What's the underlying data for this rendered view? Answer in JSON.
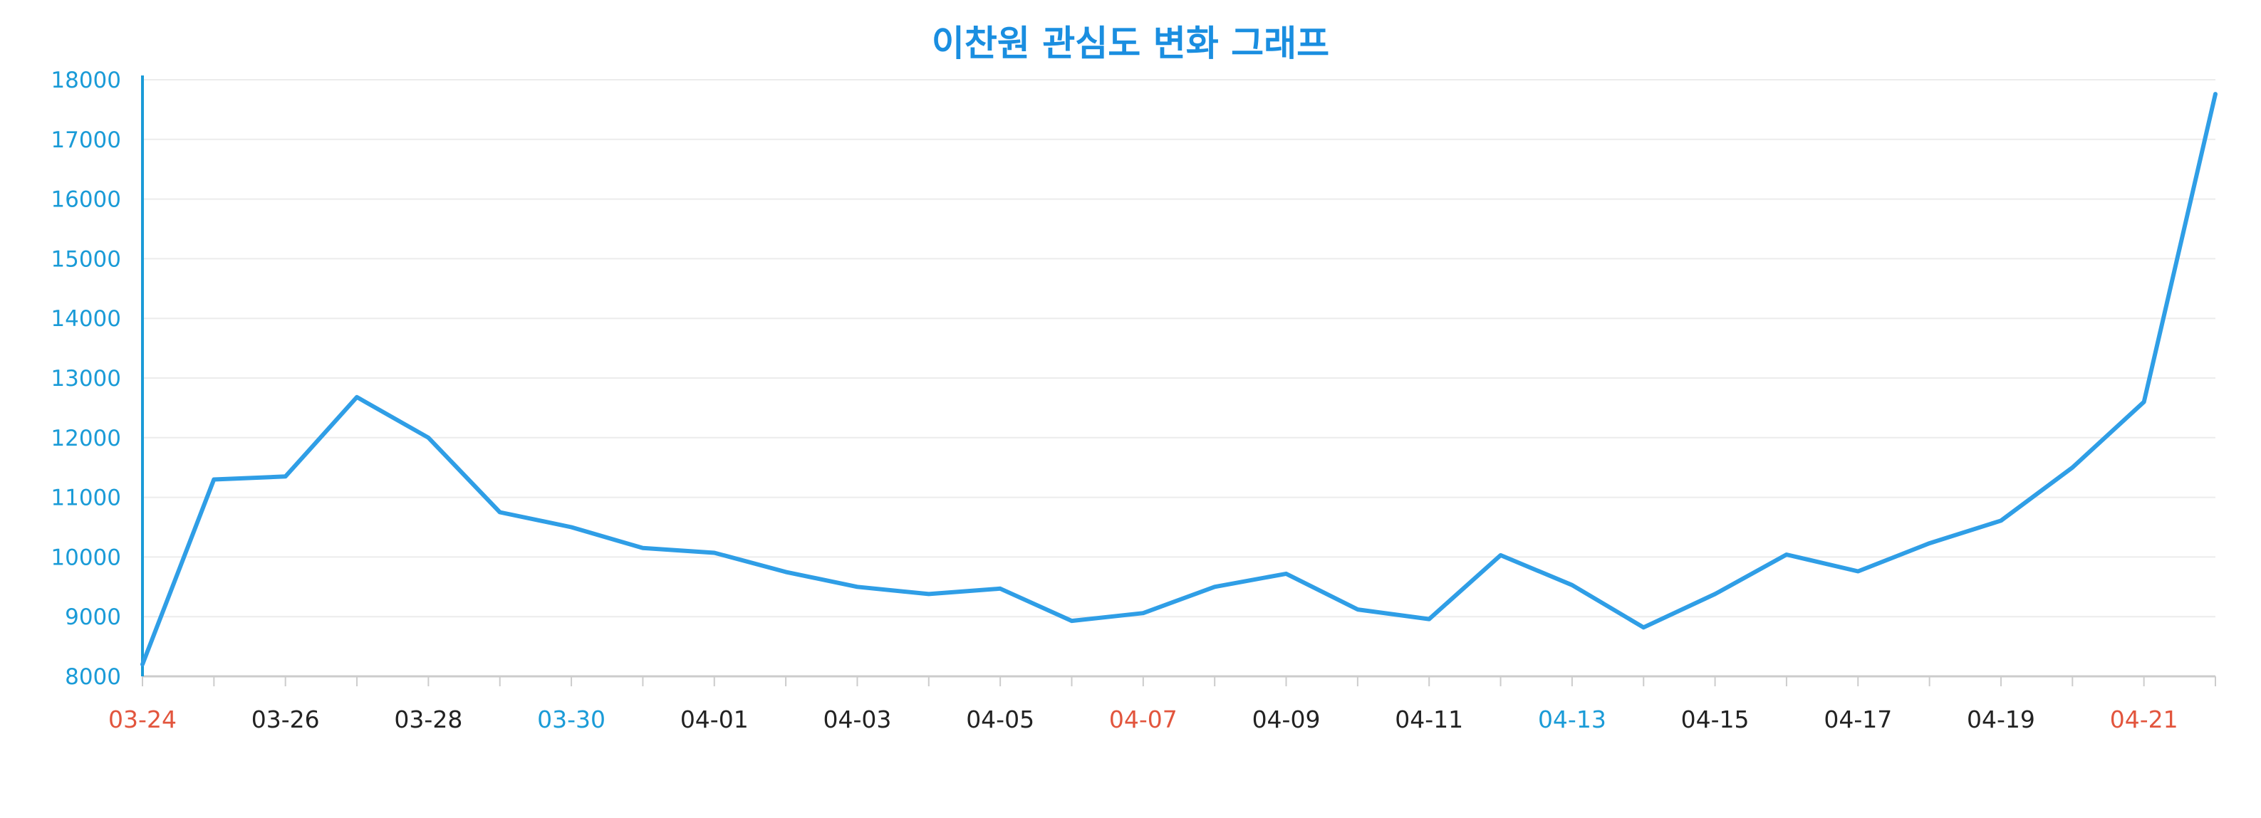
{
  "chart_data": {
    "type": "line",
    "title": "이찬원 관심도 변화 그래프",
    "xlabel": "",
    "ylabel": "",
    "ylim": [
      8000,
      18000
    ],
    "yticks": [
      8000,
      9000,
      10000,
      11000,
      12000,
      13000,
      14000,
      15000,
      16000,
      17000,
      18000
    ],
    "grid": true,
    "x": [
      "03-24",
      "03-25",
      "03-26",
      "03-27",
      "03-28",
      "03-29",
      "03-30",
      "03-31",
      "04-01",
      "04-02",
      "04-03",
      "04-04",
      "04-05",
      "04-06",
      "04-07",
      "04-08",
      "04-09",
      "04-10",
      "04-11",
      "04-12",
      "04-13",
      "04-14",
      "04-15",
      "04-16",
      "04-17",
      "04-18",
      "04-19",
      "04-20",
      "04-21",
      "04-22"
    ],
    "xtick_labels": [
      {
        "label": "03-24",
        "color": "#e2553d"
      },
      {
        "label": "03-26",
        "color": "#222222"
      },
      {
        "label": "03-28",
        "color": "#222222"
      },
      {
        "label": "03-30",
        "color": "#1a9bd7"
      },
      {
        "label": "04-01",
        "color": "#222222"
      },
      {
        "label": "04-03",
        "color": "#222222"
      },
      {
        "label": "04-05",
        "color": "#222222"
      },
      {
        "label": "04-07",
        "color": "#e2553d"
      },
      {
        "label": "04-09",
        "color": "#222222"
      },
      {
        "label": "04-11",
        "color": "#222222"
      },
      {
        "label": "04-13",
        "color": "#1a9bd7"
      },
      {
        "label": "04-15",
        "color": "#222222"
      },
      {
        "label": "04-17",
        "color": "#222222"
      },
      {
        "label": "04-19",
        "color": "#222222"
      },
      {
        "label": "04-21",
        "color": "#e2553d"
      }
    ],
    "series": [
      {
        "color": "#2f9ee6",
        "values": [
          8200,
          11300,
          11350,
          12680,
          12000,
          10750,
          10500,
          10150,
          10070,
          9750,
          9500,
          9380,
          9470,
          8930,
          9060,
          9500,
          9720,
          9120,
          8960,
          10030,
          9530,
          8820,
          9380,
          10040,
          9760,
          10230,
          10610,
          11500,
          12600,
          17760
        ]
      }
    ],
    "colors": {
      "title": "#1a8ee0",
      "axis": "#1a9bd7",
      "ytick": "#1a9bd7",
      "grid": "#ececec",
      "xaxis": "#cccccc"
    }
  }
}
